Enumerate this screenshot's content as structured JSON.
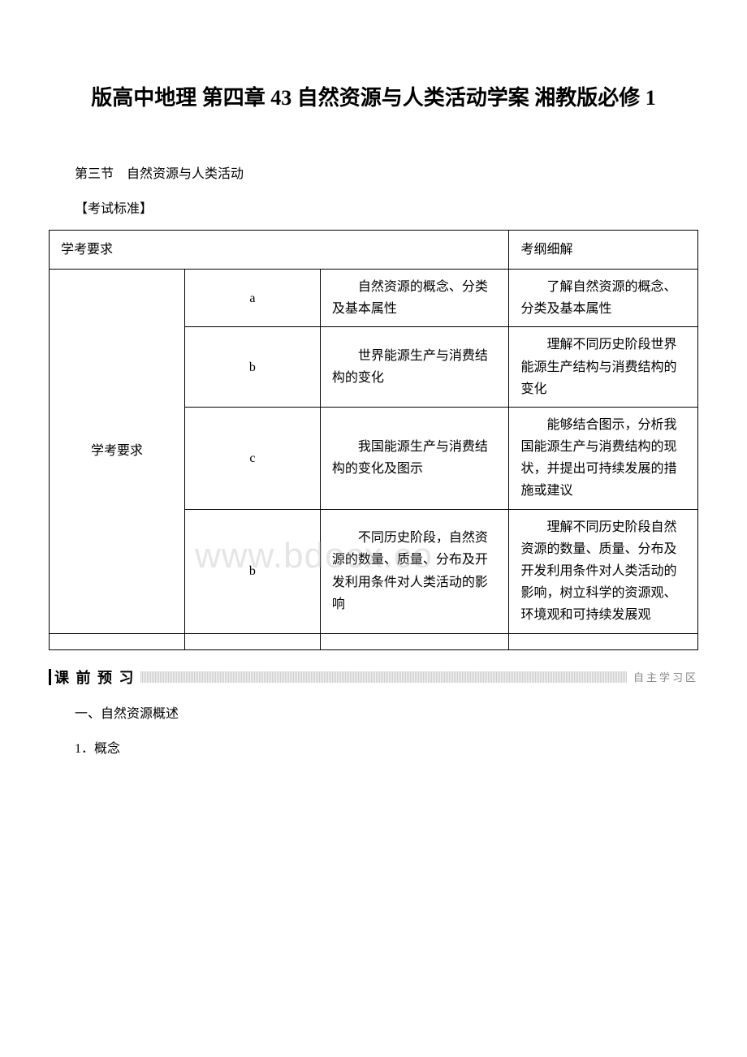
{
  "title": "版高中地理 第四章 43 自然资源与人类活动学案 湘教版必修 1",
  "section_label": "第三节　自然资源与人类活动",
  "standard_label": "【考试标准】",
  "watermark": "www.bdocx.co",
  "table": {
    "header_left": "学考要求",
    "header_right": "考纲细解",
    "rowspan_label": "学考要求",
    "rows": [
      {
        "level": "a",
        "desc": "自然资源的概念、分类及基本属性",
        "detail": "了解自然资源的概念、分类及基本属性"
      },
      {
        "level": "b",
        "desc": "世界能源生产与消费结构的变化",
        "detail": "理解不同历史阶段世界能源生产结构与消费结构的变化"
      },
      {
        "level": "c",
        "desc": "我国能源生产与消费结构的变化及图示",
        "detail": "能够结合图示，分析我国能源生产与消费结构的现状，并提出可持续发展的措施或建议"
      },
      {
        "level": "b",
        "desc": "不同历史阶段，自然资源的数量、质量、分布及开发利用条件对人类活动的影响",
        "detail": "理解不同历史阶段自然资源的数量、质量、分布及开发利用条件对人类活动的影响，树立科学的资源观、环境观和可持续发展观"
      }
    ]
  },
  "preview": {
    "label": "课 前 预 习",
    "right_label": "自主学习区"
  },
  "section1_heading": "一、自然资源概述",
  "section1_item1": "1．概念"
}
